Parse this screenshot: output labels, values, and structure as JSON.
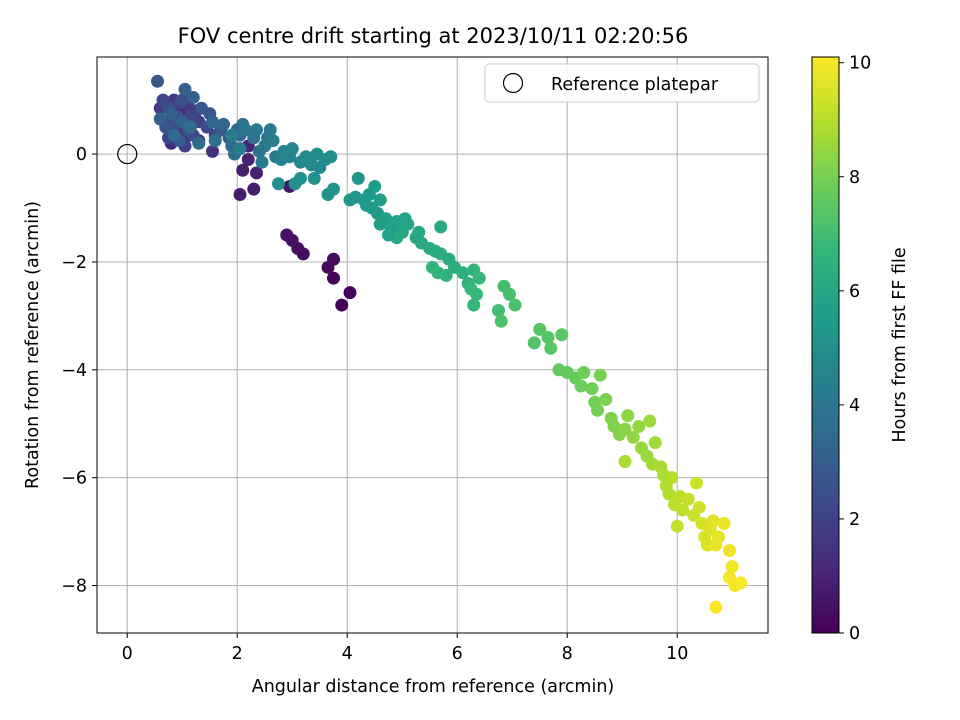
{
  "chart_data": {
    "type": "scatter",
    "title": "FOV centre drift starting at 2023/10/11 02:20:56",
    "xlabel": "Angular distance from reference (arcmin)",
    "ylabel": "Rotation from reference (arcmin)",
    "xlim": [
      -0.55,
      11.65
    ],
    "ylim": [
      -8.88,
      1.8
    ],
    "xticks": [
      0,
      2,
      4,
      6,
      8,
      10
    ],
    "yticks": [
      0,
      -2,
      -4,
      -6,
      -8
    ],
    "grid": true,
    "legend": {
      "placement": "top-right",
      "entries": [
        "Reference platepar"
      ]
    },
    "reference_point": {
      "x": 0,
      "y": 0
    },
    "colorbar": {
      "label": "Hours from first FF file",
      "colormap": "viridis",
      "range": [
        0,
        10.1
      ],
      "ticks": [
        0,
        2,
        4,
        6,
        8,
        10
      ]
    },
    "colors": {
      "viridis": [
        "#440154",
        "#482878",
        "#3e4989",
        "#31688e",
        "#26828e",
        "#1f9e89",
        "#35b779",
        "#6ece58",
        "#b5de2b",
        "#fde725"
      ],
      "grid": "#b0b0b0",
      "axis": "#000000"
    },
    "series": [
      {
        "points": [
          [
            3.9,
            -2.8,
            0.05
          ],
          [
            4.05,
            -2.57,
            0.1
          ],
          [
            3.75,
            -2.3,
            0.15
          ],
          [
            3.65,
            -2.1,
            0.2
          ],
          [
            3.75,
            -1.95,
            0.25
          ],
          [
            3.2,
            -1.85,
            0.35
          ],
          [
            3.1,
            -1.75,
            0.4
          ],
          [
            3.0,
            -1.6,
            0.45
          ],
          [
            2.9,
            -1.5,
            0.5
          ],
          [
            2.95,
            -0.6,
            0.6
          ],
          [
            2.05,
            -0.75,
            0.75
          ],
          [
            2.3,
            -0.65,
            0.8
          ],
          [
            2.1,
            -0.3,
            0.85
          ],
          [
            2.35,
            -0.35,
            0.9
          ],
          [
            2.2,
            -0.1,
            1.0
          ],
          [
            2.2,
            0.15,
            1.05
          ],
          [
            0.95,
            0.8,
            1.1
          ],
          [
            1.05,
            0.3,
            1.2
          ],
          [
            0.8,
            0.2,
            1.3
          ],
          [
            1.0,
            0.55,
            1.4
          ],
          [
            1.3,
            0.25,
            1.45
          ],
          [
            1.55,
            0.05,
            1.5
          ],
          [
            1.25,
            0.8,
            1.55
          ],
          [
            0.9,
            0.45,
            1.6
          ],
          [
            0.7,
            0.6,
            1.7
          ],
          [
            1.1,
            0.9,
            1.75
          ],
          [
            0.85,
            1.0,
            1.8
          ],
          [
            0.6,
            0.85,
            1.85
          ],
          [
            1.05,
            0.15,
            1.9
          ],
          [
            1.3,
            0.6,
            2.0
          ],
          [
            0.75,
            0.3,
            2.05
          ],
          [
            1.15,
            0.7,
            2.1
          ],
          [
            0.95,
            0.95,
            2.15
          ],
          [
            0.65,
            1.0,
            2.2
          ],
          [
            1.45,
            0.5,
            2.25
          ],
          [
            1.6,
            0.35,
            2.3
          ],
          [
            1.2,
            0.35,
            2.35
          ],
          [
            0.85,
            0.55,
            2.4
          ],
          [
            1.0,
            1.0,
            2.45
          ],
          [
            0.75,
            0.85,
            2.5
          ],
          [
            0.9,
            0.7,
            2.55
          ],
          [
            1.1,
            0.45,
            2.6
          ],
          [
            0.7,
            0.5,
            2.65
          ],
          [
            0.55,
            1.35,
            2.7
          ],
          [
            1.35,
            0.85,
            2.75
          ],
          [
            1.5,
            0.75,
            2.8
          ],
          [
            1.7,
            0.45,
            2.85
          ],
          [
            1.85,
            0.3,
            2.9
          ],
          [
            0.95,
            0.25,
            2.95
          ],
          [
            1.05,
            1.2,
            3.0
          ],
          [
            0.8,
            0.75,
            3.05
          ],
          [
            1.2,
            1.05,
            3.1
          ],
          [
            0.6,
            0.65,
            3.15
          ],
          [
            1.0,
            0.6,
            3.2
          ],
          [
            1.55,
            0.6,
            3.25
          ],
          [
            1.75,
            0.55,
            3.3
          ],
          [
            2.0,
            0.45,
            3.35
          ],
          [
            2.05,
            0.35,
            3.4
          ],
          [
            1.9,
            0.15,
            3.45
          ],
          [
            0.85,
            0.35,
            3.5
          ],
          [
            1.15,
            0.5,
            3.55
          ],
          [
            1.3,
            0.2,
            3.6
          ],
          [
            1.6,
            0.25,
            3.65
          ],
          [
            1.95,
            0.0,
            3.7
          ],
          [
            2.1,
            0.55,
            3.75
          ],
          [
            2.3,
            0.3,
            3.8
          ],
          [
            2.4,
            0.05,
            3.85
          ],
          [
            2.55,
            0.3,
            3.9
          ],
          [
            2.15,
            0.45,
            3.95
          ],
          [
            2.7,
            -0.05,
            4.0
          ],
          [
            2.35,
            0.45,
            4.05
          ],
          [
            2.6,
            0.45,
            4.1
          ],
          [
            2.5,
            0.15,
            4.15
          ],
          [
            2.45,
            -0.15,
            4.2
          ],
          [
            2.05,
            0.1,
            4.25
          ],
          [
            1.9,
            0.35,
            4.3
          ],
          [
            2.65,
            0.25,
            4.4
          ],
          [
            2.8,
            -0.1,
            4.45
          ],
          [
            2.95,
            -0.05,
            4.5
          ],
          [
            2.85,
            0.05,
            4.55
          ],
          [
            3.0,
            0.1,
            4.6
          ],
          [
            3.15,
            -0.15,
            4.65
          ],
          [
            3.35,
            -0.2,
            4.7
          ],
          [
            3.5,
            -0.25,
            4.75
          ],
          [
            3.25,
            -0.05,
            4.8
          ],
          [
            3.45,
            0.0,
            4.85
          ],
          [
            3.6,
            -0.1,
            4.9
          ],
          [
            3.7,
            -0.05,
            4.95
          ],
          [
            2.75,
            -0.55,
            5.0
          ],
          [
            3.05,
            -0.55,
            5.05
          ],
          [
            3.15,
            -0.45,
            5.1
          ],
          [
            3.4,
            -0.45,
            5.15
          ],
          [
            3.65,
            -0.75,
            5.2
          ],
          [
            3.75,
            -0.65,
            5.25
          ],
          [
            4.05,
            -0.85,
            5.3
          ],
          [
            4.15,
            -0.8,
            5.35
          ],
          [
            4.3,
            -0.85,
            5.4
          ],
          [
            4.45,
            -1.0,
            5.45
          ],
          [
            4.55,
            -1.1,
            5.5
          ],
          [
            4.4,
            -0.75,
            5.55
          ],
          [
            4.5,
            -0.6,
            5.6
          ],
          [
            4.6,
            -0.85,
            5.65
          ],
          [
            4.7,
            -1.2,
            5.7
          ],
          [
            4.8,
            -1.35,
            5.75
          ],
          [
            4.9,
            -1.25,
            5.8
          ],
          [
            5.05,
            -1.2,
            5.85
          ],
          [
            5.1,
            -1.3,
            5.9
          ],
          [
            5.0,
            -1.45,
            5.95
          ],
          [
            4.9,
            -1.55,
            6.0
          ],
          [
            5.25,
            -1.55,
            6.05
          ],
          [
            5.35,
            -1.65,
            6.1
          ],
          [
            5.5,
            -1.75,
            6.15
          ],
          [
            5.6,
            -1.8,
            6.2
          ],
          [
            5.7,
            -1.85,
            6.25
          ],
          [
            5.85,
            -1.95,
            6.3
          ],
          [
            5.95,
            -2.1,
            6.35
          ],
          [
            6.1,
            -2.2,
            6.4
          ],
          [
            5.8,
            -2.25,
            6.45
          ],
          [
            6.2,
            -2.4,
            6.5
          ],
          [
            5.55,
            -2.1,
            6.55
          ],
          [
            5.65,
            -2.2,
            6.6
          ],
          [
            4.2,
            -0.45,
            5.35
          ],
          [
            4.35,
            -0.95,
            5.5
          ],
          [
            4.6,
            -1.3,
            5.65
          ],
          [
            4.75,
            -1.5,
            5.75
          ],
          [
            5.3,
            -1.45,
            6.0
          ],
          [
            5.7,
            -1.35,
            6.1
          ],
          [
            6.3,
            -2.15,
            6.6
          ],
          [
            6.3,
            -2.8,
            6.65
          ],
          [
            6.35,
            -2.6,
            6.7
          ],
          [
            6.4,
            -2.3,
            6.75
          ],
          [
            6.25,
            -2.5,
            6.8
          ],
          [
            6.75,
            -2.9,
            7.0
          ],
          [
            6.85,
            -2.45,
            7.05
          ],
          [
            6.95,
            -2.6,
            7.1
          ],
          [
            7.05,
            -2.8,
            7.15
          ],
          [
            6.8,
            -3.1,
            7.2
          ],
          [
            7.4,
            -3.5,
            7.3
          ],
          [
            7.5,
            -3.25,
            7.35
          ],
          [
            7.65,
            -3.4,
            7.4
          ],
          [
            7.7,
            -3.6,
            7.45
          ],
          [
            7.9,
            -3.35,
            7.5
          ],
          [
            7.85,
            -4.0,
            7.6
          ],
          [
            8.0,
            -4.05,
            7.65
          ],
          [
            8.15,
            -4.15,
            7.7
          ],
          [
            8.25,
            -4.3,
            7.75
          ],
          [
            8.3,
            -4.05,
            7.8
          ],
          [
            8.45,
            -4.35,
            7.85
          ],
          [
            8.5,
            -4.6,
            7.9
          ],
          [
            8.55,
            -4.75,
            7.95
          ],
          [
            8.6,
            -4.1,
            8.0
          ],
          [
            8.7,
            -4.55,
            8.05
          ],
          [
            8.8,
            -4.9,
            8.1
          ],
          [
            8.85,
            -5.05,
            8.15
          ],
          [
            8.95,
            -5.2,
            8.2
          ],
          [
            9.05,
            -5.1,
            8.3
          ],
          [
            9.1,
            -4.85,
            8.35
          ],
          [
            9.2,
            -5.25,
            8.4
          ],
          [
            9.3,
            -5.05,
            8.45
          ],
          [
            9.35,
            -5.45,
            8.5
          ],
          [
            9.45,
            -5.6,
            8.55
          ],
          [
            9.5,
            -4.95,
            8.6
          ],
          [
            9.55,
            -5.75,
            8.65
          ],
          [
            9.6,
            -5.35,
            8.7
          ],
          [
            9.7,
            -5.8,
            8.75
          ],
          [
            9.05,
            -5.7,
            8.8
          ],
          [
            9.75,
            -5.95,
            8.85
          ],
          [
            9.8,
            -6.15,
            8.9
          ],
          [
            9.85,
            -6.3,
            8.95
          ],
          [
            9.9,
            -6.0,
            9.0
          ],
          [
            9.95,
            -6.5,
            9.05
          ],
          [
            10.05,
            -6.35,
            9.1
          ],
          [
            10.1,
            -6.6,
            9.15
          ],
          [
            10.0,
            -6.9,
            9.2
          ],
          [
            10.2,
            -6.4,
            9.25
          ],
          [
            10.3,
            -6.7,
            9.3
          ],
          [
            10.35,
            -6.1,
            9.35
          ],
          [
            10.4,
            -6.55,
            9.4
          ],
          [
            10.45,
            -6.85,
            9.45
          ],
          [
            10.5,
            -7.1,
            9.5
          ],
          [
            10.55,
            -7.25,
            9.55
          ],
          [
            10.6,
            -6.95,
            9.6
          ],
          [
            10.65,
            -6.8,
            9.65
          ],
          [
            10.75,
            -7.1,
            9.7
          ],
          [
            10.7,
            -7.25,
            9.75
          ],
          [
            10.85,
            -6.85,
            9.8
          ],
          [
            10.95,
            -7.35,
            9.85
          ],
          [
            11.0,
            -7.65,
            9.9
          ],
          [
            10.95,
            -7.85,
            9.95
          ],
          [
            11.05,
            -8.0,
            10.0
          ],
          [
            11.15,
            -7.95,
            10.05
          ],
          [
            10.7,
            -8.4,
            10.1
          ]
        ]
      }
    ]
  }
}
